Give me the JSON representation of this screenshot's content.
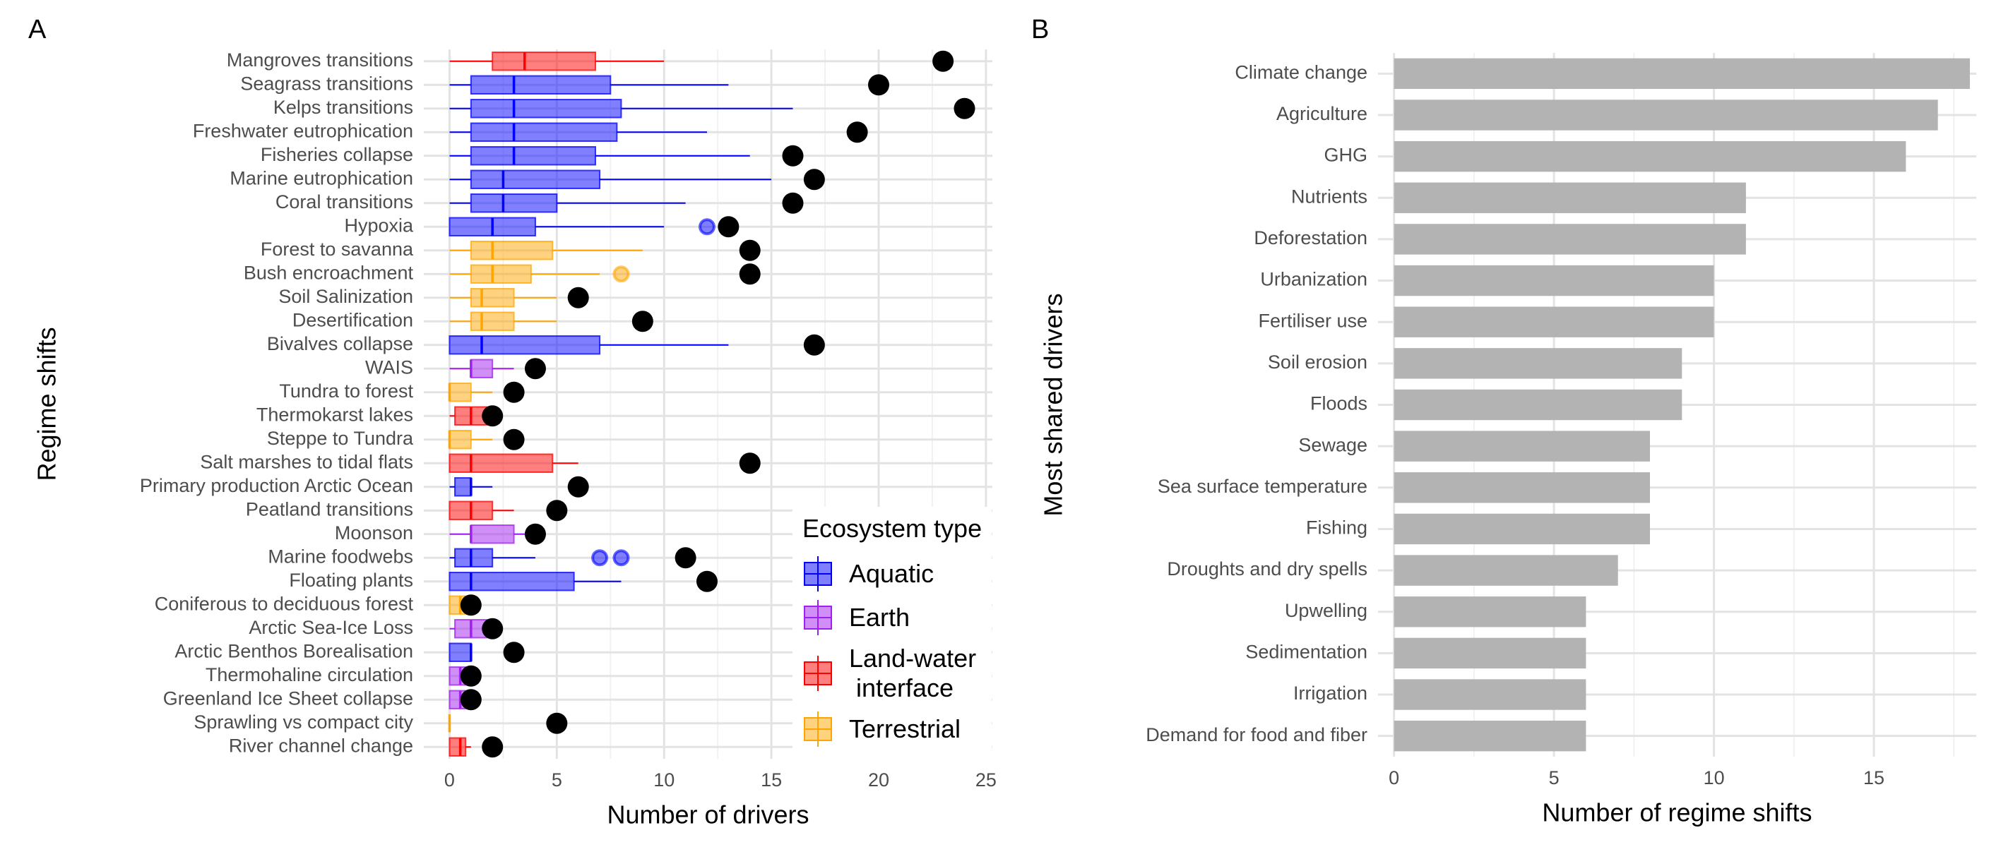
{
  "chart_data": [
    {
      "type": "boxplot",
      "panel_label": "A",
      "xlabel": "Number of drivers",
      "ylabel": "Regime shifts",
      "categories": [
        "Mangroves transitions",
        "Seagrass transitions",
        "Kelps transitions",
        "Freshwater eutrophication",
        "Fisheries collapse",
        "Marine eutrophication",
        "Coral transitions",
        "Hypoxia",
        "Forest to savanna",
        "Bush encroachment",
        "Soil Salinization",
        "Desertification",
        "Bivalves collapse",
        "WAIS",
        "Tundra to forest",
        "Thermokarst lakes",
        "Steppe to Tundra",
        "Salt marshes to tidal flats",
        "Primary production Arctic Ocean",
        "Peatland transitions",
        "Moonson",
        "Marine foodwebs",
        "Floating plants",
        "Coniferous to deciduous forest",
        "Arctic Sea-Ice Loss",
        "Arctic Benthos Borealisation",
        "Thermohaline circulation",
        "Greenland Ice Sheet collapse",
        "Sprawling vs compact city",
        "River channel change"
      ],
      "xlim": [
        -1.2,
        25.3
      ],
      "xticks": [
        0,
        5,
        10,
        15,
        20,
        25
      ],
      "grid": true,
      "legend_title": "Ecosystem type",
      "legend_position": "right",
      "series": [
        {
          "name": "Aquatic",
          "color": "#0000ff",
          "boxes": [
            null,
            {
              "min": 0,
              "q1": 1,
              "median": 3,
              "q3": 7.5,
              "max": 13,
              "outliers": []
            },
            {
              "min": 0,
              "q1": 1,
              "median": 3,
              "q3": 8,
              "max": 16,
              "outliers": []
            },
            {
              "min": 0,
              "q1": 1,
              "median": 3,
              "q3": 7.8,
              "max": 12,
              "outliers": []
            },
            {
              "min": 0,
              "q1": 1,
              "median": 3,
              "q3": 6.8,
              "max": 14,
              "outliers": []
            },
            {
              "min": 0,
              "q1": 1,
              "median": 2.5,
              "q3": 7,
              "max": 15,
              "outliers": []
            },
            {
              "min": 0,
              "q1": 1,
              "median": 2.5,
              "q3": 5,
              "max": 11,
              "outliers": []
            },
            {
              "min": 0,
              "q1": 0,
              "median": 2,
              "q3": 4,
              "max": 10,
              "outliers": [
                12
              ]
            },
            null,
            null,
            null,
            null,
            {
              "min": 0,
              "q1": 0,
              "median": 1.5,
              "q3": 7,
              "max": 13,
              "outliers": []
            },
            null,
            null,
            null,
            null,
            null,
            {
              "min": 0,
              "q1": 0.25,
              "median": 1,
              "q3": 1,
              "max": 2,
              "outliers": []
            },
            null,
            null,
            {
              "min": 0,
              "q1": 0.25,
              "median": 1,
              "q3": 2,
              "max": 4,
              "outliers": [
                7,
                8
              ]
            },
            {
              "min": 0,
              "q1": 0,
              "median": 1,
              "q3": 5.8,
              "max": 8,
              "outliers": []
            },
            null,
            null,
            {
              "min": 0,
              "q1": 0,
              "median": 1,
              "q3": 1,
              "max": 1,
              "outliers": []
            },
            null,
            null,
            null,
            null
          ]
        },
        {
          "name": "Earth",
          "color": "#a020f0",
          "boxes": [
            null,
            null,
            null,
            null,
            null,
            null,
            null,
            null,
            null,
            null,
            null,
            null,
            null,
            {
              "min": 0,
              "q1": 1,
              "median": 1,
              "q3": 2,
              "max": 3,
              "outliers": []
            },
            null,
            null,
            null,
            null,
            null,
            null,
            {
              "min": 0,
              "q1": 1,
              "median": 1,
              "q3": 3,
              "max": 4,
              "outliers": []
            },
            null,
            null,
            null,
            {
              "min": 0,
              "q1": 0.25,
              "median": 1,
              "q3": 1.75,
              "max": 2,
              "outliers": []
            },
            null,
            {
              "min": 0,
              "q1": 0,
              "median": 0.5,
              "q3": 0.75,
              "max": 1,
              "outliers": []
            },
            {
              "min": 0,
              "q1": 0,
              "median": 0.5,
              "q3": 0.75,
              "max": 1,
              "outliers": []
            },
            null,
            null
          ]
        },
        {
          "name": "Land-water\n interface",
          "color": "#ff0000",
          "boxes": [
            {
              "min": 0,
              "q1": 2,
              "median": 3.5,
              "q3": 6.8,
              "max": 10,
              "outliers": []
            },
            null,
            null,
            null,
            null,
            null,
            null,
            null,
            null,
            null,
            null,
            null,
            null,
            null,
            null,
            {
              "min": 0,
              "q1": 0.25,
              "median": 1,
              "q3": 1.75,
              "max": 2,
              "outliers": []
            },
            null,
            {
              "min": 0,
              "q1": 0,
              "median": 1,
              "q3": 4.8,
              "max": 6,
              "outliers": []
            },
            null,
            {
              "min": 0,
              "q1": 0,
              "median": 1,
              "q3": 2,
              "max": 3,
              "outliers": []
            },
            null,
            null,
            null,
            null,
            null,
            null,
            null,
            null,
            null,
            {
              "min": 0,
              "q1": 0,
              "median": 0.5,
              "q3": 0.75,
              "max": 1,
              "outliers": []
            }
          ]
        },
        {
          "name": "Terrestrial",
          "color": "#ffa500",
          "boxes": [
            null,
            null,
            null,
            null,
            null,
            null,
            null,
            null,
            {
              "min": 0,
              "q1": 1,
              "median": 2,
              "q3": 4.8,
              "max": 9,
              "outliers": []
            },
            {
              "min": 0,
              "q1": 1,
              "median": 2,
              "q3": 3.8,
              "max": 7,
              "outliers": [
                8
              ]
            },
            {
              "min": 0,
              "q1": 1,
              "median": 1.5,
              "q3": 3,
              "max": 5,
              "outliers": []
            },
            {
              "min": 0,
              "q1": 1,
              "median": 1.5,
              "q3": 3,
              "max": 5,
              "outliers": []
            },
            null,
            null,
            {
              "min": 0,
              "q1": 0,
              "median": 0,
              "q3": 1,
              "max": 2,
              "outliers": []
            },
            null,
            {
              "min": 0,
              "q1": 0,
              "median": 0,
              "q3": 1,
              "max": 2,
              "outliers": []
            },
            null,
            null,
            null,
            null,
            null,
            null,
            {
              "min": 0,
              "q1": 0,
              "median": 0.5,
              "q3": 0.75,
              "max": 1,
              "outliers": []
            },
            null,
            null,
            null,
            null,
            {
              "min": 0,
              "q1": 0,
              "median": 0,
              "q3": 0,
              "max": 0,
              "outliers": []
            },
            null
          ]
        }
      ],
      "totals": {
        "color": "#000000",
        "values": [
          23,
          20,
          24,
          19,
          16,
          17,
          16,
          13,
          14,
          14,
          6,
          9,
          17,
          4,
          3,
          2,
          3,
          14,
          6,
          5,
          4,
          11,
          12,
          1,
          2,
          3,
          1,
          1,
          5,
          2
        ]
      }
    },
    {
      "type": "bar",
      "orientation": "horizontal",
      "panel_label": "B",
      "xlabel": "Number of regime shifts",
      "ylabel": "Most shared drivers",
      "categories": [
        "Climate change",
        "Agriculture",
        "GHG",
        "Nutrients",
        "Deforestation",
        "Urbanization",
        "Fertiliser use",
        "Soil erosion",
        "Floods",
        "Sewage",
        "Sea surface temperature",
        "Fishing",
        "Droughts and dry spells",
        "Upwelling",
        "Sedimentation",
        "Irrigation",
        "Demand for food and fiber"
      ],
      "values": [
        18,
        17,
        16,
        11,
        11,
        10,
        10,
        9,
        9,
        8,
        8,
        8,
        7,
        6,
        6,
        6,
        6
      ],
      "color": "#b3b3b3",
      "xlim": [
        -0.5,
        18.2
      ],
      "xticks": [
        0,
        5,
        10,
        15
      ],
      "grid": true
    }
  ]
}
